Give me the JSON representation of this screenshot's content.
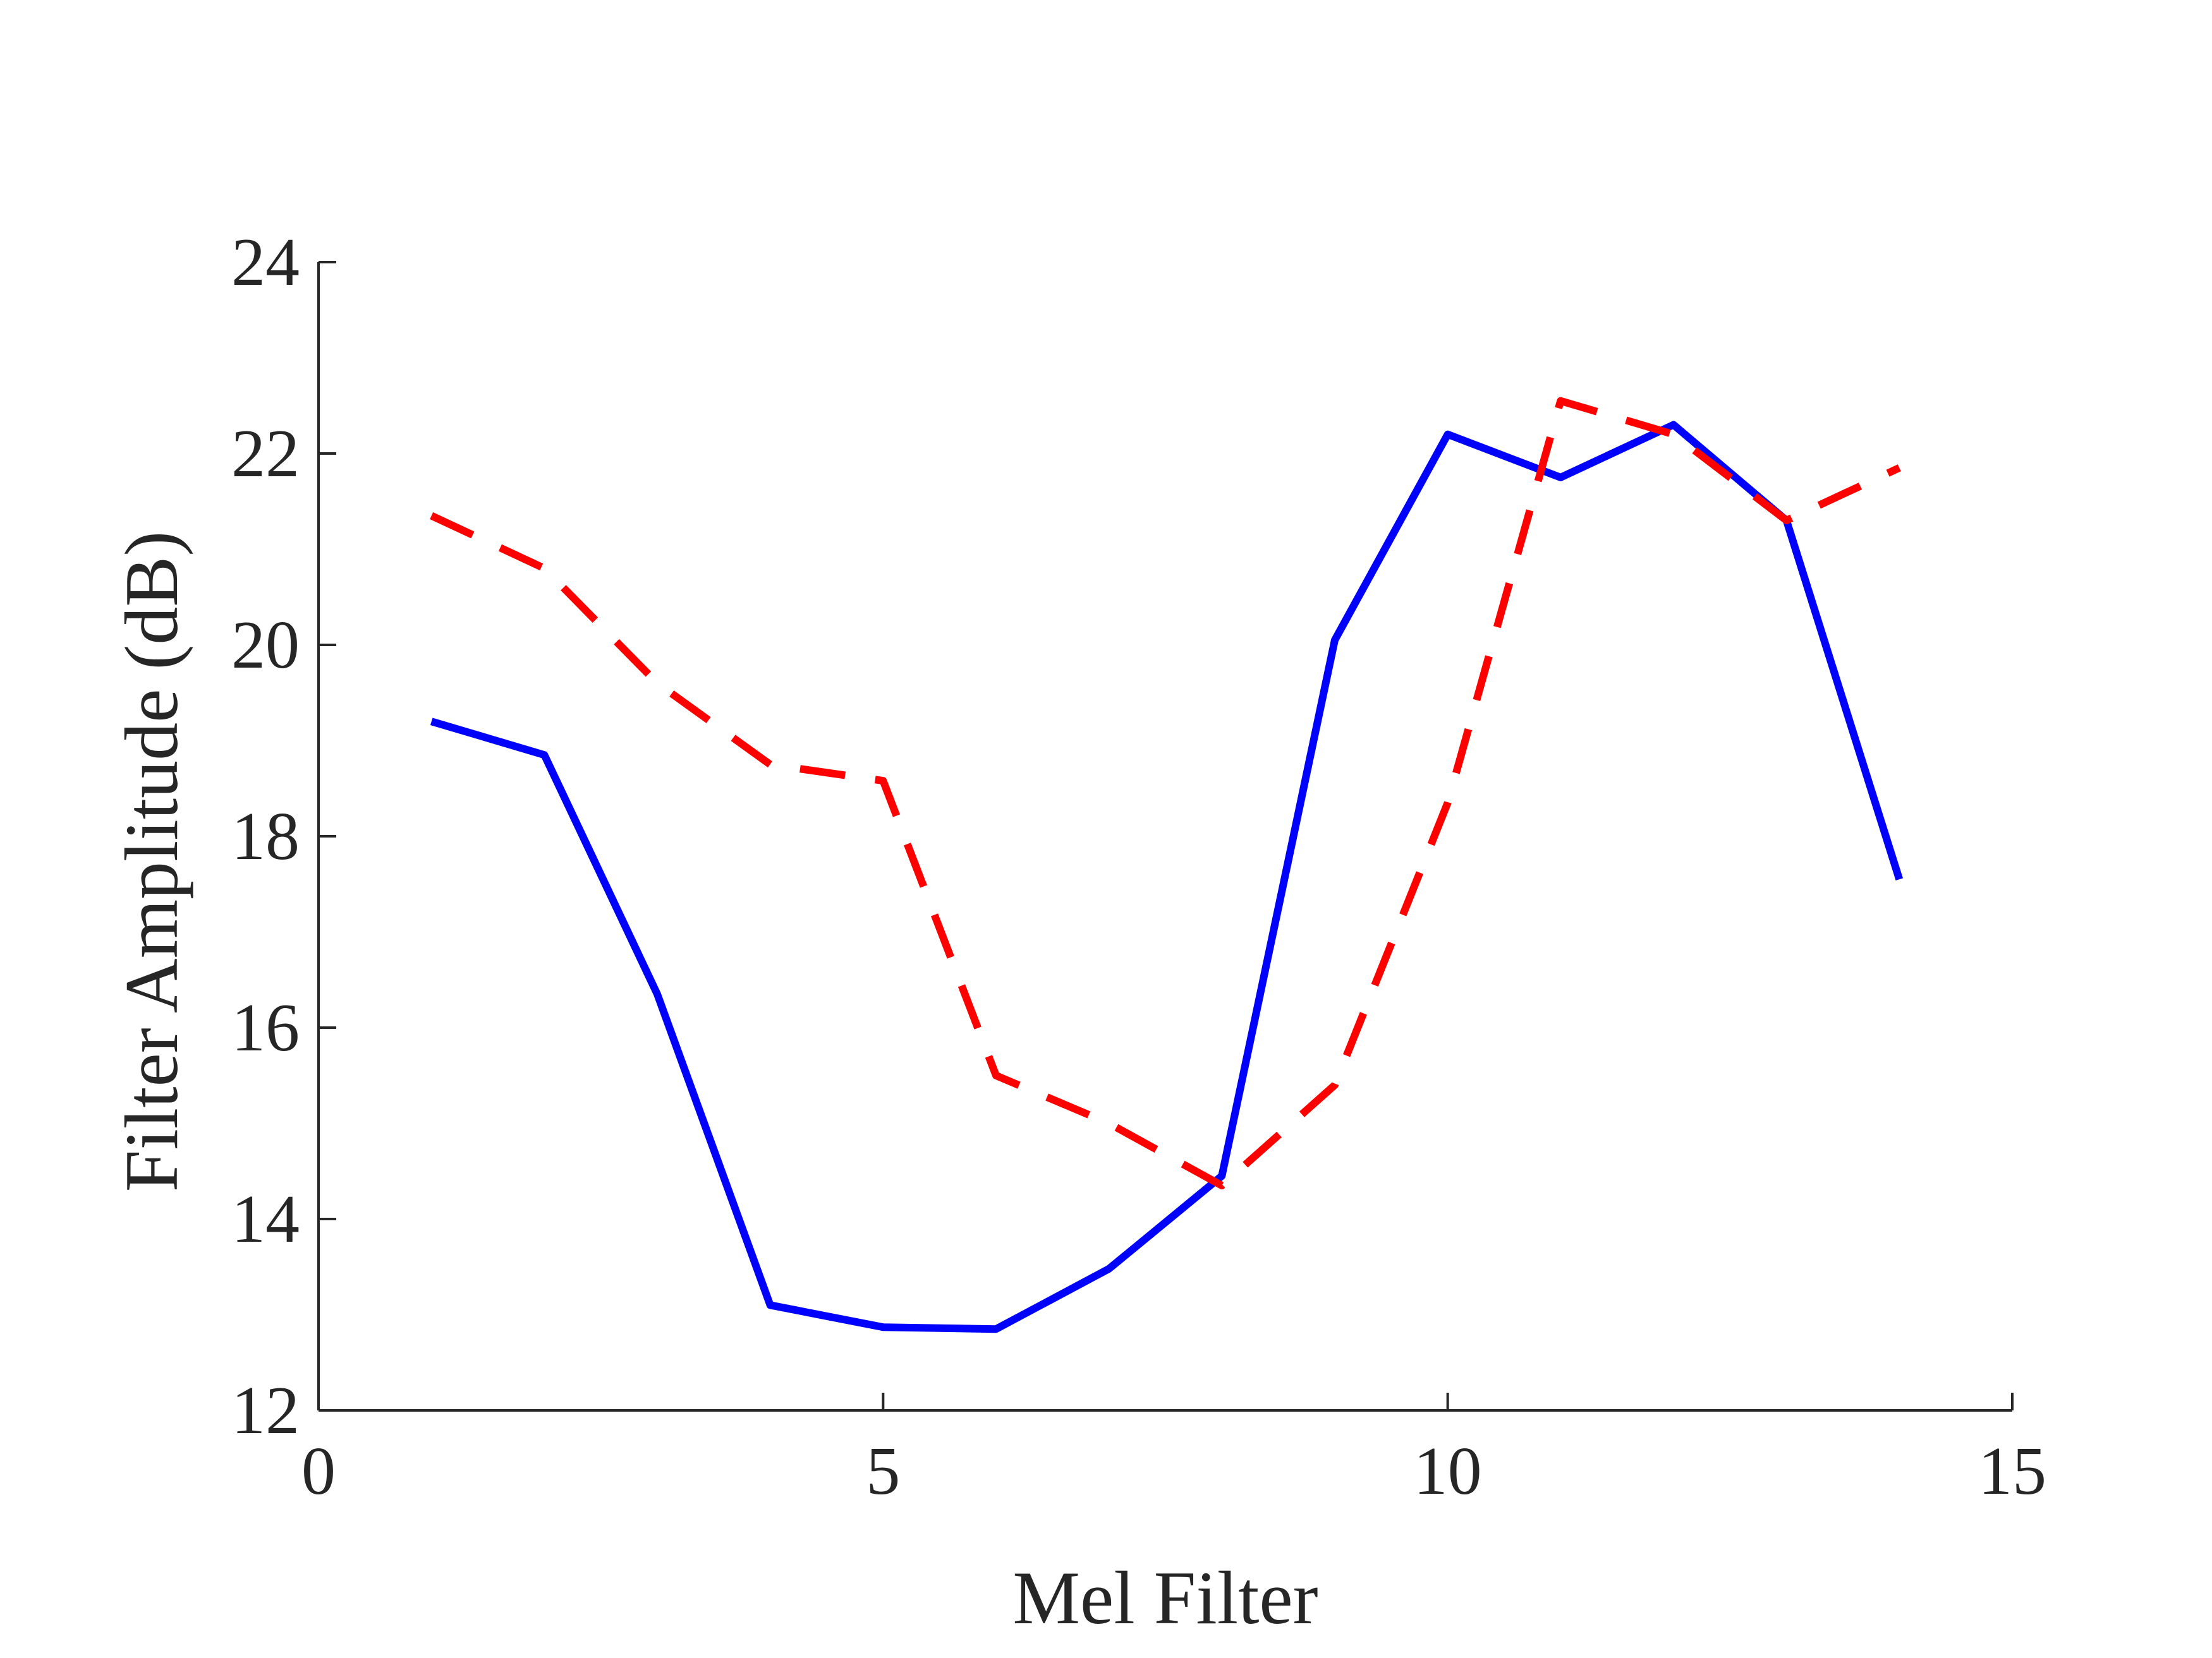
{
  "chart_data": {
    "type": "line",
    "title": "",
    "xlabel": "Mel Filter",
    "ylabel": "Filter Amplitude (dB)",
    "xlim": [
      0,
      15
    ],
    "ylim": [
      12,
      24
    ],
    "xticks": [
      0,
      5,
      10,
      15
    ],
    "yticks": [
      12,
      14,
      16,
      18,
      20,
      22,
      24
    ],
    "xtick_labels": [
      "0",
      "5",
      "10",
      "15"
    ],
    "ytick_labels": [
      "12",
      "14",
      "16",
      "18",
      "20",
      "22",
      "24"
    ],
    "grid": false,
    "x": [
      1,
      2,
      3,
      4,
      5,
      6,
      7,
      8,
      9,
      10,
      11,
      12,
      13,
      14
    ],
    "series": [
      {
        "color": "#0000ff",
        "style": "solid",
        "values": [
          19.2,
          18.85,
          16.35,
          13.1,
          12.87,
          12.85,
          13.48,
          14.45,
          20.05,
          22.2,
          21.75,
          22.3,
          21.3,
          17.55
        ]
      },
      {
        "color": "#ff0000",
        "style": "dashed",
        "values": [
          21.35,
          20.8,
          19.6,
          18.75,
          18.58,
          15.5,
          15.0,
          14.35,
          15.4,
          18.35,
          22.55,
          22.2,
          21.3,
          21.85
        ]
      }
    ]
  }
}
